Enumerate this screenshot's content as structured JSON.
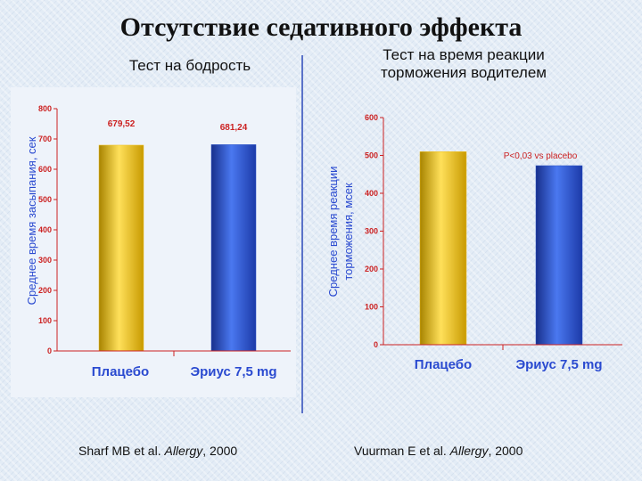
{
  "title": "Отсутствие седативного эффекта",
  "left_subtitle": "Тест на бодрость",
  "right_subtitle_line1": "Тест на время реакции",
  "right_subtitle_line2": "торможения водителем",
  "left_citation": {
    "author": "Sharf MB et al. ",
    "journal": "Allergy",
    "year": ", 2000"
  },
  "right_citation": {
    "author": "Vuurman E et al. ",
    "journal": "Allergy",
    "year": ", 2000"
  },
  "colors": {
    "placebo_bar": "#f0c020",
    "erius_bar": "#2b54c8",
    "axis": "#cc2222",
    "label": "#2a4ad0"
  },
  "chart_data": [
    {
      "type": "bar",
      "title": "Тест на бодрость",
      "ylabel": "Среднее время засыпания, сек",
      "categories": [
        "Плацебо",
        "Эриус 7,5 mg"
      ],
      "values": [
        679.52,
        681.24
      ],
      "data_labels": [
        "679,52",
        "681,24"
      ],
      "yticks": [
        "0",
        "100",
        "200",
        "300",
        "400",
        "500",
        "600",
        "700",
        "800"
      ],
      "ylim": [
        0,
        800
      ],
      "grid": false
    },
    {
      "type": "bar",
      "title": "Тест на время реакции торможения водителем",
      "ylabel_line1": "Среднее время реакции",
      "ylabel_line2": "торможения, мсек",
      "categories": [
        "Плацебо",
        "Эриус 7,5 mg"
      ],
      "values": [
        510,
        473
      ],
      "annotation": "P<0,03 vs placebo",
      "yticks": [
        "0",
        "100",
        "200",
        "300",
        "400",
        "500",
        "600"
      ],
      "ylim": [
        0,
        600
      ],
      "grid": false
    }
  ]
}
